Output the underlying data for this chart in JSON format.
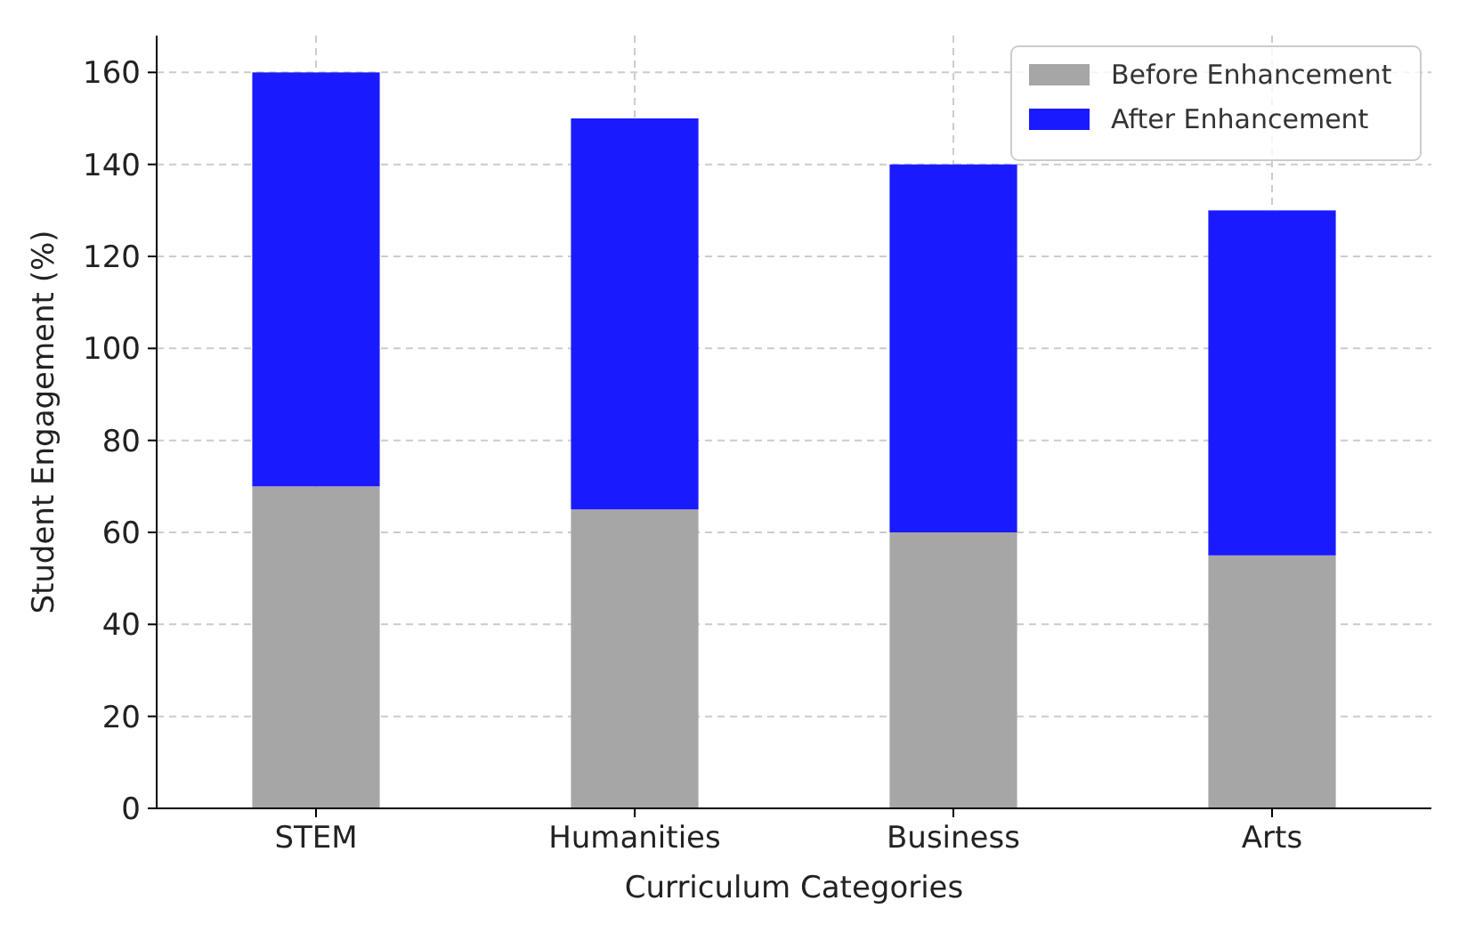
{
  "chart_data": {
    "type": "bar",
    "stacked": true,
    "xlabel": "Curriculum Categories",
    "ylabel": "Student Engagement (%)",
    "categories": [
      "STEM",
      "Humanities",
      "Business",
      "Arts"
    ],
    "series": [
      {
        "name": "Before Enhancement",
        "color": "#a6a6a6",
        "values": [
          70,
          65,
          60,
          55
        ]
      },
      {
        "name": "After Enhancement",
        "color": "#1a1aff",
        "values": [
          90,
          85,
          80,
          75
        ]
      }
    ],
    "ylim": [
      0,
      168
    ],
    "yticks": [
      0,
      20,
      40,
      60,
      80,
      100,
      120,
      140,
      160
    ],
    "grid": true,
    "legend": "top right"
  }
}
